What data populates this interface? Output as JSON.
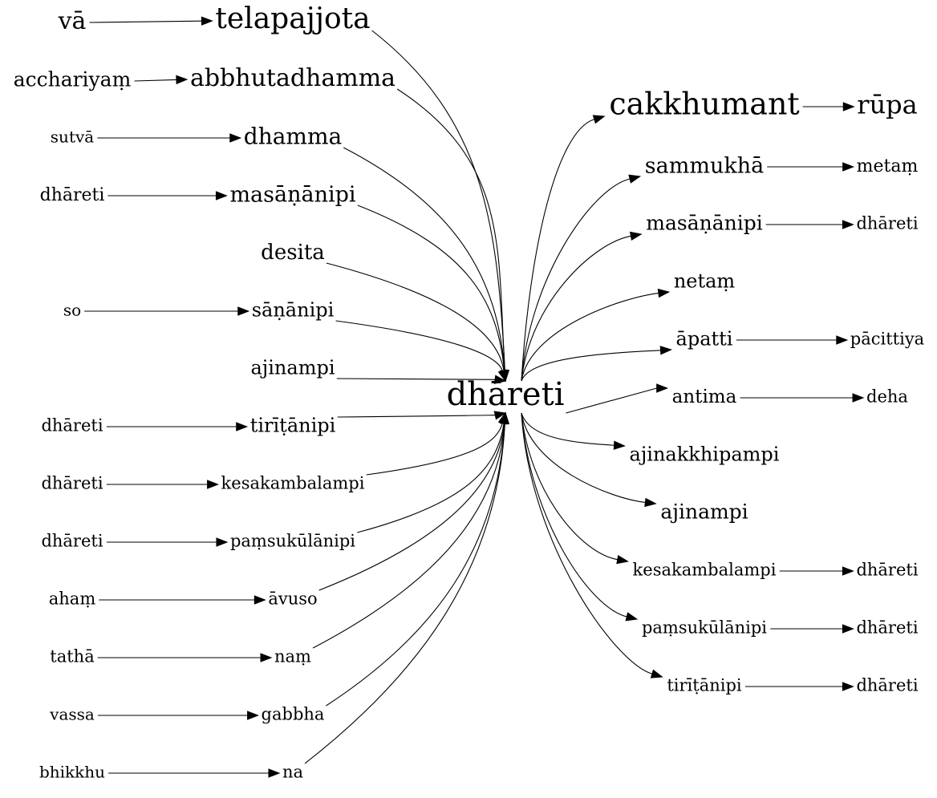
{
  "center": {
    "label": "dhāreti"
  },
  "nodes": {
    "l1": "vā",
    "m1": "telapajjota",
    "l2": "acchariyaṃ",
    "m2": "abbhutadhamma",
    "l3": "sutvā",
    "m3": "dhamma",
    "l4": "dhāreti",
    "m4": "masāṇānipi",
    "m5": "desita",
    "l6": "so",
    "m6": "sāṇānipi",
    "m7": "ajinampi",
    "l8": "dhāreti",
    "m8": "tirīṭānipi",
    "l9": "dhāreti",
    "m9": "kesakambalampi",
    "l10": "dhāreti",
    "m10": "paṃsukūlānipi",
    "l11": "ahaṃ",
    "m11": "āvuso",
    "l12": "tathā",
    "m12": "naṃ",
    "l13": "vassa",
    "m13": "gabbha",
    "l14": "bhikkhu",
    "m14": "na",
    "r1": "cakkhumant",
    "f1": "rūpa",
    "r2": "sammukhā",
    "f2": "metaṃ",
    "r3": "masāṇānipi",
    "f3": "dhāreti",
    "r4": "netaṃ",
    "r5": "āpatti",
    "f5": "pācittiya",
    "r6": "antima",
    "f6": "deha",
    "r7": "ajinakkhipampi",
    "r8": "ajinampi",
    "r9": "kesakambalampi",
    "f9": "dhāreti",
    "r10": "paṃsukūlānipi",
    "f10": "dhāreti",
    "r11": "tirīṭānipi",
    "f11": "dhāreti"
  },
  "edges": [
    [
      "l1",
      "m1"
    ],
    [
      "l2",
      "m2"
    ],
    [
      "l3",
      "m3"
    ],
    [
      "l4",
      "m4"
    ],
    [
      "l6",
      "m6"
    ],
    [
      "l8",
      "m8"
    ],
    [
      "l9",
      "m9"
    ],
    [
      "l10",
      "m10"
    ],
    [
      "l11",
      "m11"
    ],
    [
      "l12",
      "m12"
    ],
    [
      "l13",
      "m13"
    ],
    [
      "l14",
      "m14"
    ],
    [
      "m1",
      "center"
    ],
    [
      "m2",
      "center"
    ],
    [
      "m3",
      "center"
    ],
    [
      "m4",
      "center"
    ],
    [
      "m5",
      "center"
    ],
    [
      "m6",
      "center"
    ],
    [
      "m7",
      "center"
    ],
    [
      "m8",
      "center"
    ],
    [
      "m9",
      "center"
    ],
    [
      "m10",
      "center"
    ],
    [
      "m11",
      "center"
    ],
    [
      "m12",
      "center"
    ],
    [
      "m13",
      "center"
    ],
    [
      "m14",
      "center"
    ],
    [
      "center",
      "r1"
    ],
    [
      "center",
      "r2"
    ],
    [
      "center",
      "r3"
    ],
    [
      "center",
      "r4"
    ],
    [
      "center",
      "r5"
    ],
    [
      "center",
      "r6"
    ],
    [
      "center",
      "r7"
    ],
    [
      "center",
      "r8"
    ],
    [
      "center",
      "r9"
    ],
    [
      "center",
      "r10"
    ],
    [
      "center",
      "r11"
    ],
    [
      "r1",
      "f1"
    ],
    [
      "r2",
      "f2"
    ],
    [
      "r3",
      "f3"
    ],
    [
      "r5",
      "f5"
    ],
    [
      "r6",
      "f6"
    ],
    [
      "r9",
      "f9"
    ],
    [
      "r10",
      "f10"
    ],
    [
      "r11",
      "f11"
    ]
  ]
}
